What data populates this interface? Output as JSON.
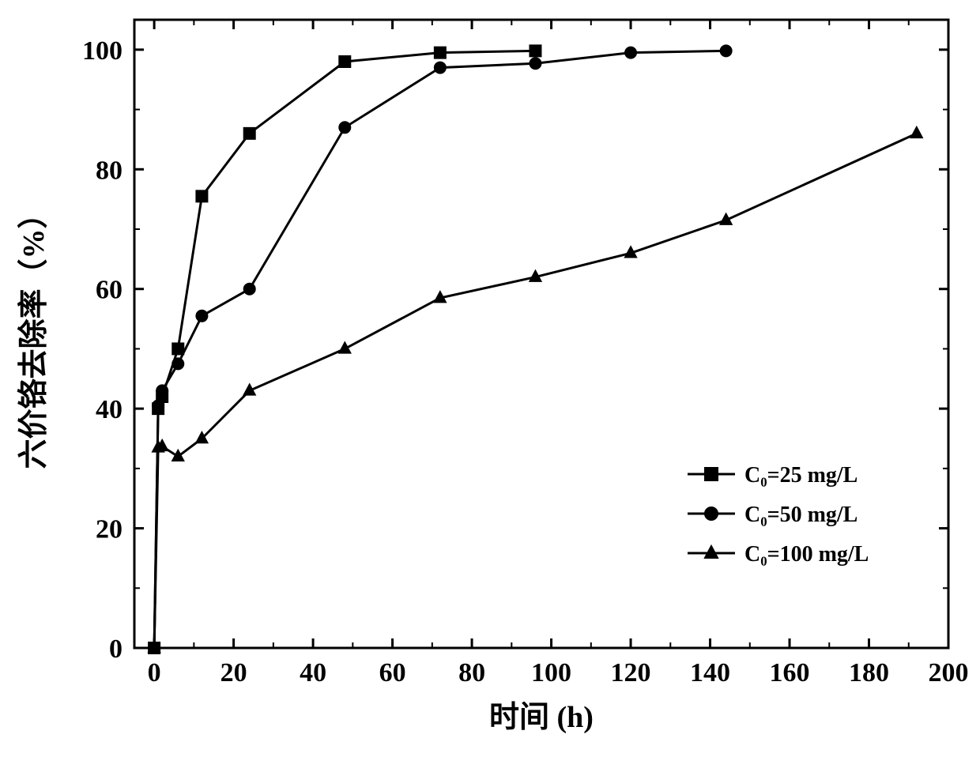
{
  "chart": {
    "type": "line",
    "background_color": "#ffffff",
    "plot_border_color": "#000000",
    "plot_border_width": 3,
    "line_color": "#000000",
    "line_width": 3,
    "marker_size": 14,
    "tick_label_fontsize": 34,
    "axis_title_fontsize": 38,
    "legend_fontsize": 28,
    "tick_length_major": 12,
    "tick_length_minor": 7,
    "xlim": [
      -5,
      200
    ],
    "ylim": [
      0,
      105
    ],
    "xticks_major": [
      0,
      20,
      40,
      60,
      80,
      100,
      120,
      140,
      160,
      180,
      200
    ],
    "xticks_minor": [
      10,
      30,
      50,
      70,
      90,
      110,
      130,
      150,
      170,
      190
    ],
    "yticks_major": [
      0,
      20,
      40,
      60,
      80,
      100
    ],
    "yticks_minor": [
      10,
      30,
      50,
      70,
      90
    ],
    "x_axis_label": "时间 (h)",
    "y_axis_label": "六价铬去除率（%）",
    "legend": {
      "position": "bottom-right",
      "items": [
        {
          "label": "C₀=25 mg/L",
          "marker": "square"
        },
        {
          "label": "C₀=50 mg/L",
          "marker": "circle"
        },
        {
          "label": "C₀=100 mg/L",
          "marker": "triangle"
        }
      ]
    },
    "series": [
      {
        "name": "C0_25",
        "marker": "square",
        "x": [
          0,
          1,
          2,
          6,
          12,
          24,
          48,
          72,
          96
        ],
        "y": [
          0,
          40,
          42,
          50,
          75.5,
          86,
          98,
          99.5,
          99.8
        ]
      },
      {
        "name": "C0_50",
        "marker": "circle",
        "x": [
          0,
          1,
          2,
          6,
          12,
          24,
          48,
          72,
          96,
          120,
          144
        ],
        "y": [
          0,
          40.5,
          43,
          47.5,
          55.5,
          60,
          87,
          97,
          97.7,
          99.5,
          99.8
        ]
      },
      {
        "name": "C0_100",
        "marker": "triangle",
        "x": [
          0,
          1,
          2,
          6,
          12,
          24,
          48,
          72,
          96,
          120,
          144,
          192
        ],
        "y": [
          0,
          33.5,
          33.7,
          32,
          35,
          43,
          50,
          58.5,
          62,
          66,
          71.5,
          86
        ]
      }
    ]
  }
}
